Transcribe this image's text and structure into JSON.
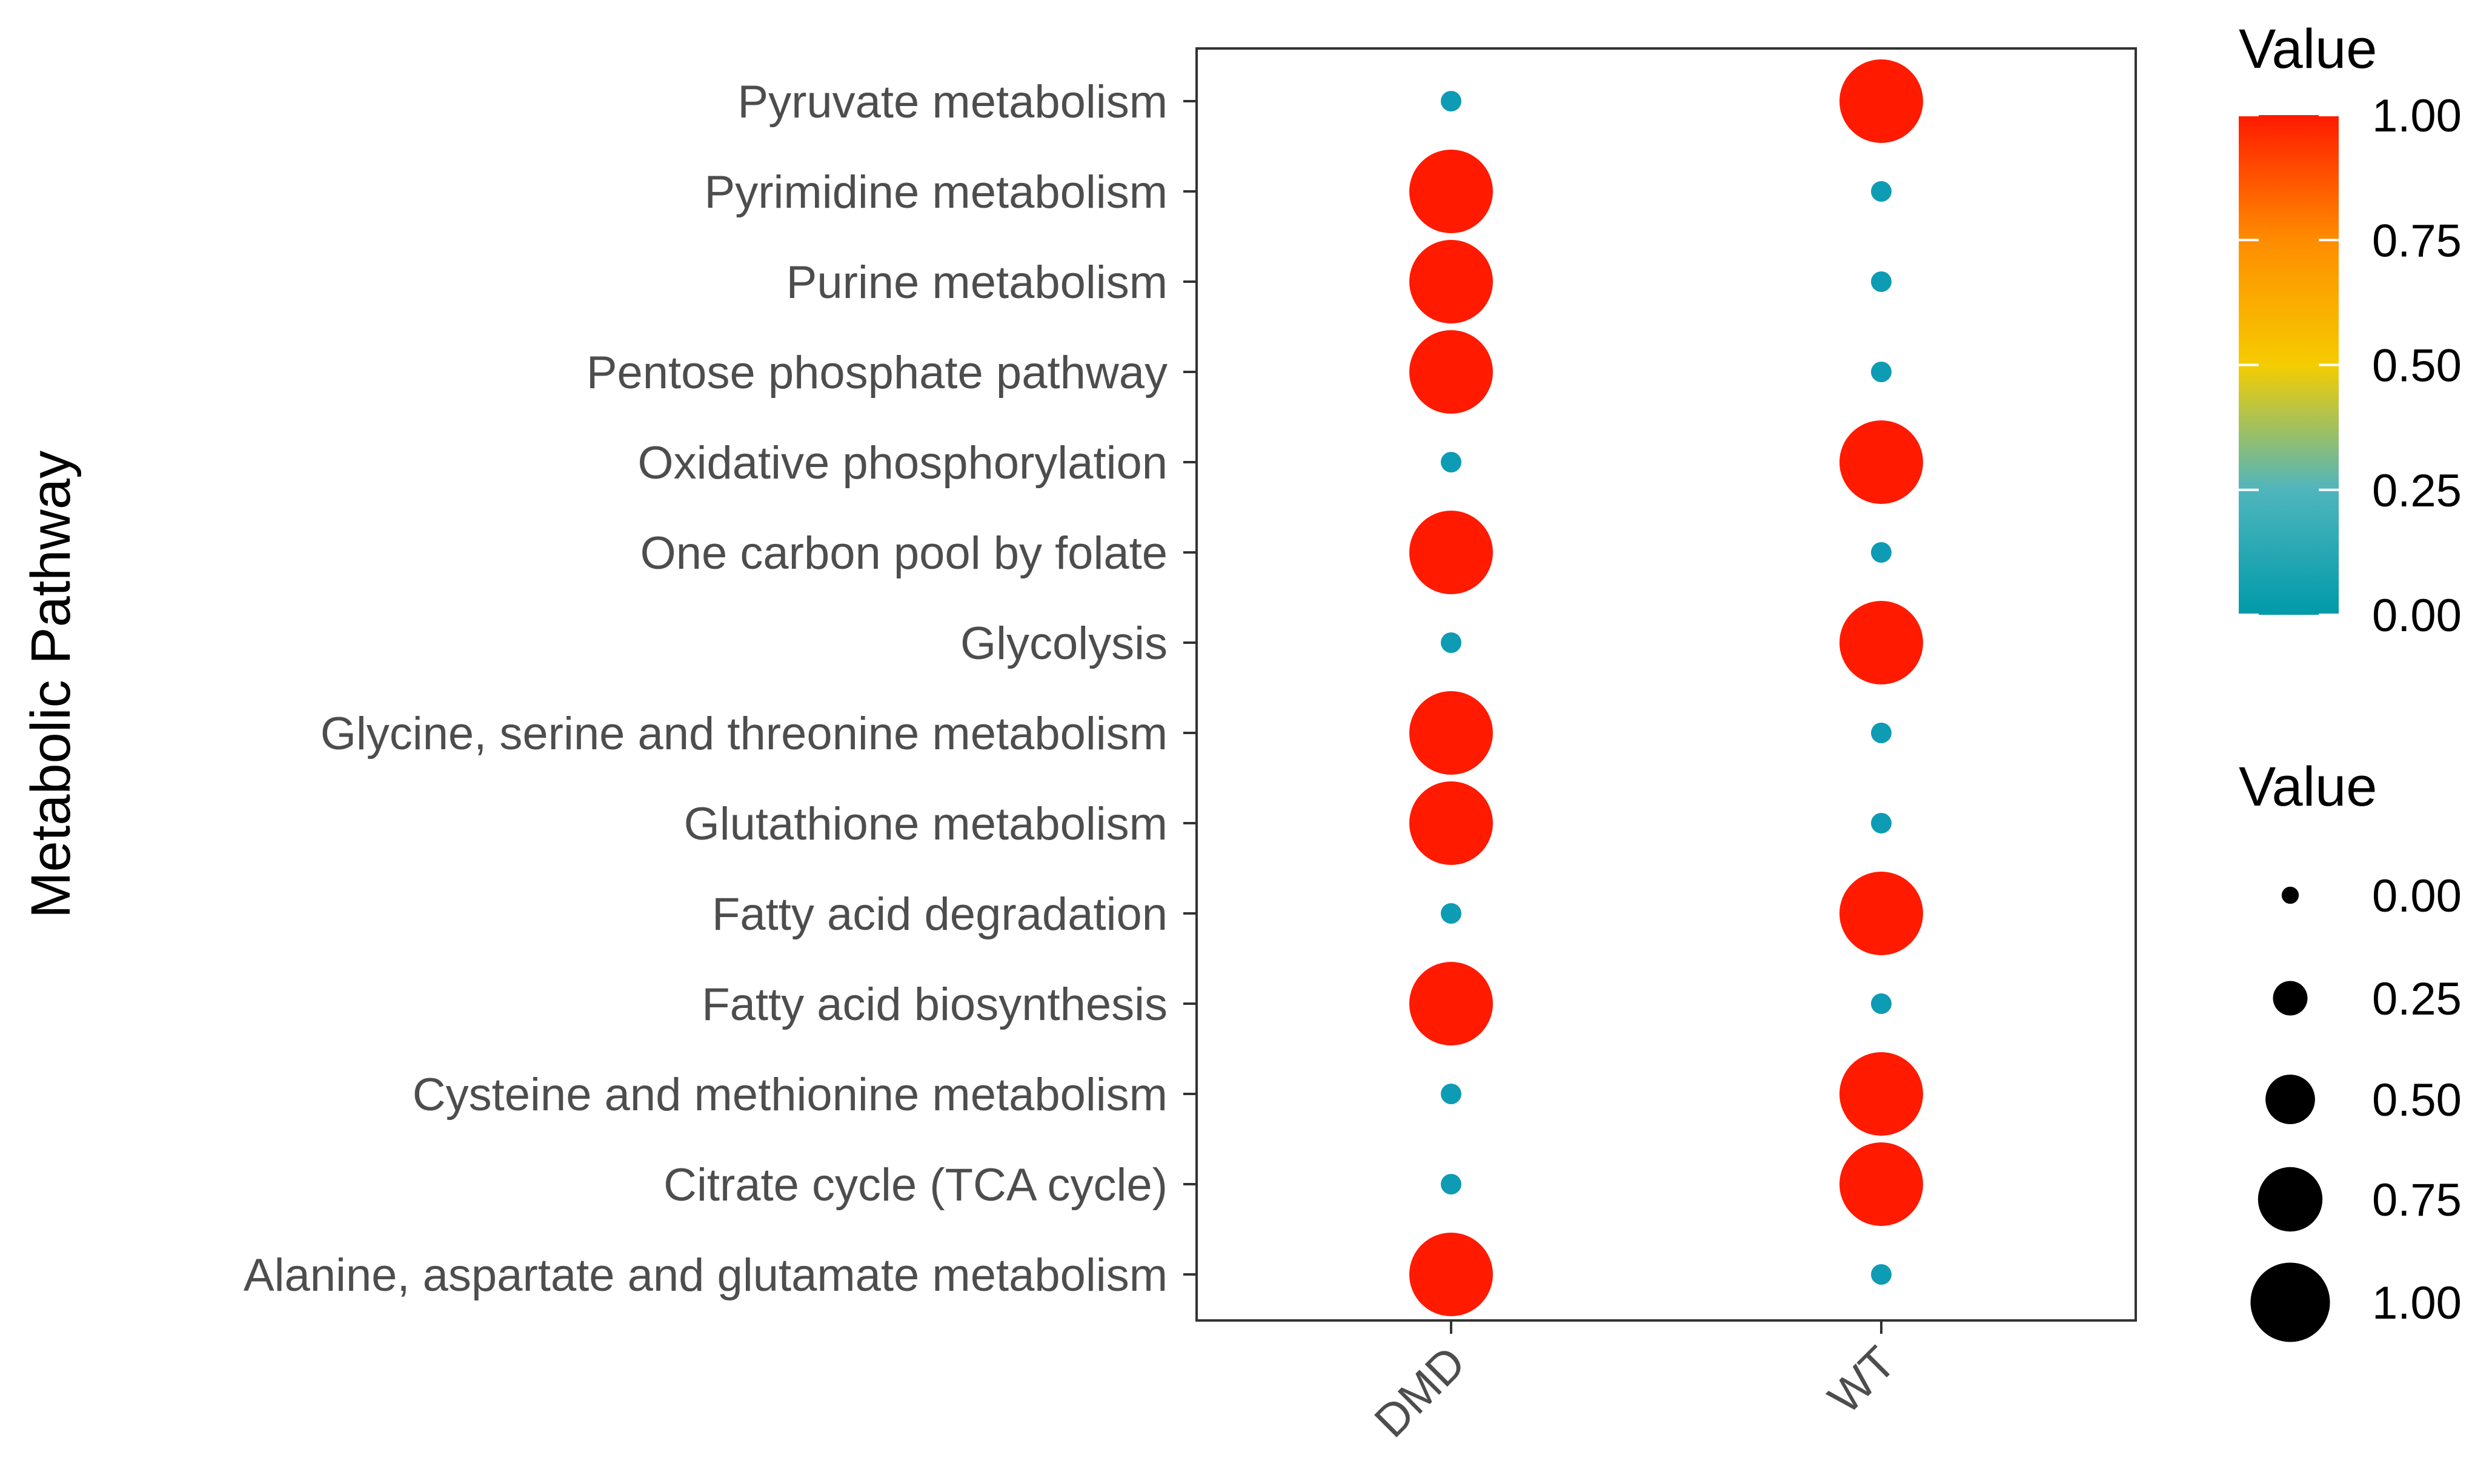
{
  "chart_data": {
    "type": "scatter",
    "subtype": "dot-plot",
    "ylabel": "Metabolic Pathway",
    "xlabel": "",
    "x_categories": [
      "DMD",
      "WT"
    ],
    "y_categories": [
      "Pyruvate metabolism",
      "Pyrimidine metabolism",
      "Purine metabolism",
      "Pentose phosphate pathway",
      "Oxidative phosphorylation",
      "One carbon pool by folate",
      "Glycolysis",
      "Glycine, serine and threonine metabolism",
      "Glutathione metabolism",
      "Fatty acid degradation",
      "Fatty acid biosynthesis",
      "Cysteine and methionine metabolism",
      "Citrate cycle (TCA cycle)",
      "Alanine, aspartate and glutamate metabolism"
    ],
    "series": [
      {
        "name": "DMD",
        "values": [
          0,
          1,
          1,
          1,
          0,
          1,
          0,
          1,
          1,
          0,
          1,
          0,
          0,
          1
        ]
      },
      {
        "name": "WT",
        "values": [
          1,
          0,
          0,
          0,
          1,
          0,
          1,
          0,
          0,
          1,
          0,
          1,
          1,
          0
        ]
      }
    ],
    "color_legend": {
      "title": "Value",
      "ticks": [
        "1.00",
        "0.75",
        "0.50",
        "0.25",
        "0.00"
      ],
      "range": [
        0,
        1
      ],
      "colors": [
        "#009aa9",
        "#f5cc00",
        "#ff1a00"
      ]
    },
    "size_legend": {
      "title": "Value",
      "ticks": [
        "0.00",
        "0.25",
        "0.50",
        "0.75",
        "1.00"
      ],
      "values": [
        0,
        0.25,
        0.5,
        0.75,
        1
      ]
    },
    "colors": {
      "low": "#0e9bb4",
      "high": "#ff1a00",
      "mid": "#f5cc00",
      "legend_dot": "#000000"
    }
  }
}
